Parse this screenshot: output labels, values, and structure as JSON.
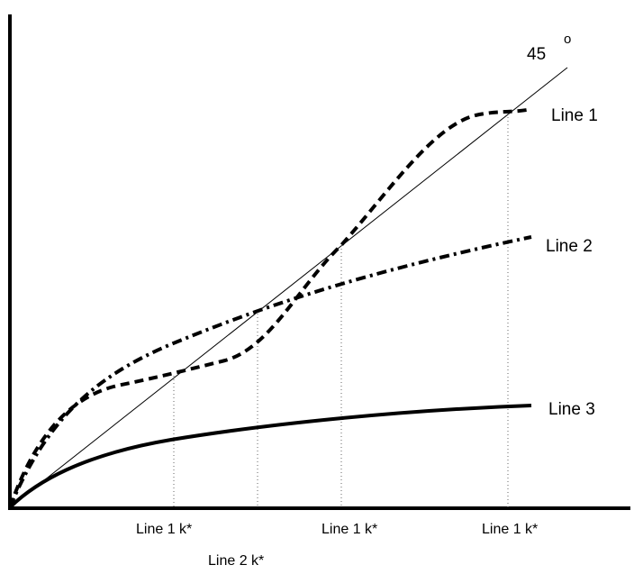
{
  "diagram": {
    "line_labels": [
      "Line 1",
      "Line 2",
      "Line 3"
    ],
    "forty_five_label": "45",
    "degree_symbol": "o",
    "k_labels": [
      "Line 1 k*",
      "Line 2 k*",
      "Line 1 k*",
      "Line 1 k*"
    ]
  }
}
